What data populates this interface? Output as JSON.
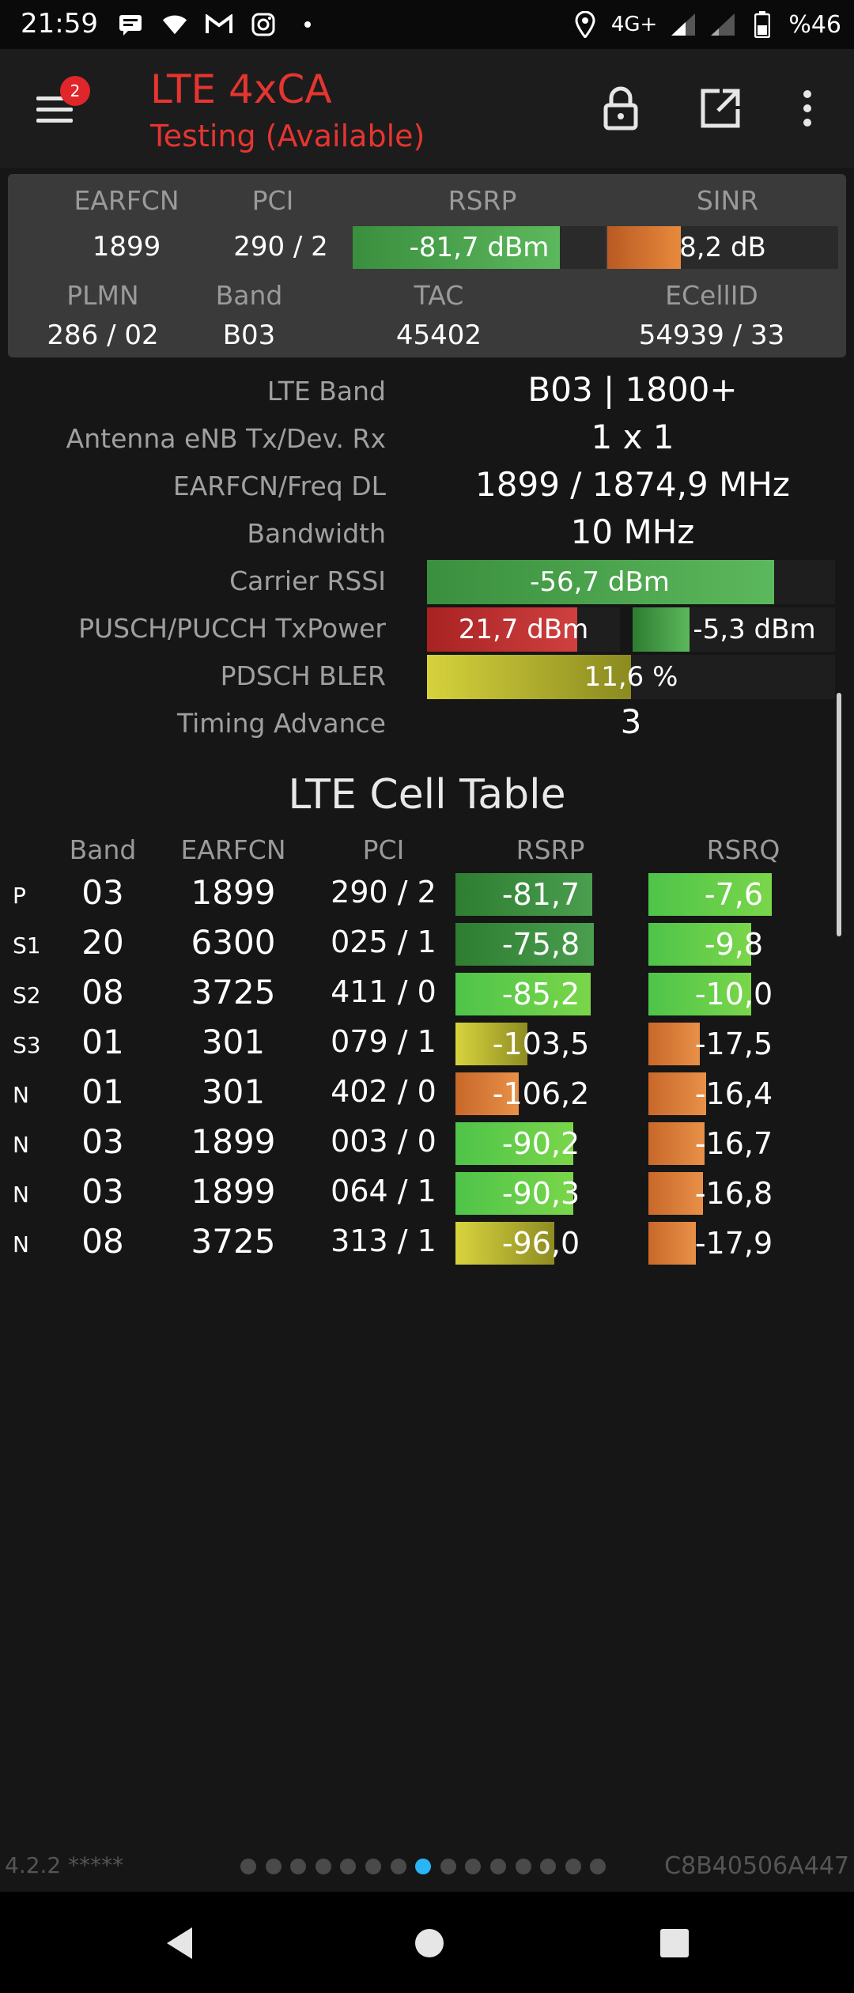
{
  "status_bar": {
    "time": "21:59",
    "left_icons": [
      "message-icon",
      "wifi-icon",
      "gmail-icon",
      "instagram-icon",
      "dot-icon"
    ],
    "network": "4G+",
    "battery": "%46"
  },
  "app_bar": {
    "menu_badge": "2",
    "title": "LTE 4xCA",
    "subtitle": "Testing (Available)",
    "actions": [
      "lock-icon",
      "open-external-icon",
      "more-vert-icon"
    ]
  },
  "summary": {
    "headers": {
      "earfcn": "EARFCN",
      "pci": "PCI",
      "rsrp": "RSRP",
      "sinr": "SINR",
      "plmn": "PLMN",
      "band": "Band",
      "tac": "TAC",
      "ecellid": "ECellID"
    },
    "earfcn": "1899",
    "pci": "290 / 2",
    "rsrp": "-81,7 dBm",
    "rsrp_level": 0.82,
    "sinr": "8,2 dB",
    "sinr_level": 0.32,
    "plmn": "286 / 02",
    "band": "B03",
    "tac": "45402",
    "ecellid": "54939 / 33"
  },
  "info": {
    "lte_band_label": "LTE Band",
    "lte_band_value": "B03 | 1800+",
    "antenna_label": "Antenna eNB Tx/Dev. Rx",
    "antenna_value": "1 x 1",
    "earfcn_freq_label": "EARFCN/Freq DL",
    "earfcn_freq_value": "1899 / 1874,9 MHz",
    "bandwidth_label": "Bandwidth",
    "bandwidth_value": "10 MHz",
    "carrier_rssi_label": "Carrier RSSI",
    "carrier_rssi_value": "-56,7 dBm",
    "carrier_rssi_level": 0.85,
    "txpower_label": "PUSCH/PUCCH TxPower",
    "pusch_value": "21,7 dBm",
    "pusch_level": 0.78,
    "pucch_value": "-5,3 dBm",
    "pucch_level": 0.28,
    "bler_label": "PDSCH BLER",
    "bler_value": "11,6 %",
    "bler_level": 0.5,
    "timing_advance_label": "Timing Advance",
    "timing_advance_value": "3"
  },
  "cell_table": {
    "title": "LTE Cell Table",
    "headers": {
      "band": "Band",
      "earfcn": "EARFCN",
      "pci": "PCI",
      "rsrp": "RSRP",
      "rsrq": "RSRQ"
    },
    "rows": [
      {
        "type": "P",
        "band": "03",
        "earfcn": "1899",
        "pci": "290 / 2",
        "rsrp": "-81,7",
        "rsrq": "-7,6",
        "rsrp_level": 0.8,
        "rsrq_level": 0.72,
        "rsrp_color": "dark-green",
        "rsrq_color": "green"
      },
      {
        "type": "S1",
        "band": "20",
        "earfcn": "6300",
        "pci": "025 / 1",
        "rsrp": "-75,8",
        "rsrq": "-9,8",
        "rsrp_level": 0.81,
        "rsrq_level": 0.6,
        "rsrp_color": "dark-green",
        "rsrq_color": "green"
      },
      {
        "type": "S2",
        "band": "08",
        "earfcn": "3725",
        "pci": "411 / 0",
        "rsrp": "-85,2",
        "rsrq": "-10,0",
        "rsrp_level": 0.79,
        "rsrq_level": 0.6,
        "rsrp_color": "green",
        "rsrq_color": "green"
      },
      {
        "type": "S3",
        "band": "01",
        "earfcn": "301",
        "pci": "079 / 1",
        "rsrp": "-103,5",
        "rsrq": "-17,5",
        "rsrp_level": 0.42,
        "rsrq_level": 0.3,
        "rsrp_color": "yellow",
        "rsrq_color": "orange"
      },
      {
        "type": "N",
        "band": "01",
        "earfcn": "301",
        "pci": "402 / 0",
        "rsrp": "-106,2",
        "rsrq": "-16,4",
        "rsrp_level": 0.37,
        "rsrq_level": 0.34,
        "rsrp_color": "orange",
        "rsrq_color": "orange"
      },
      {
        "type": "N",
        "band": "03",
        "earfcn": "1899",
        "pci": "003 / 0",
        "rsrp": "-90,2",
        "rsrq": "-16,7",
        "rsrp_level": 0.69,
        "rsrq_level": 0.33,
        "rsrp_color": "green",
        "rsrq_color": "orange"
      },
      {
        "type": "N",
        "band": "03",
        "earfcn": "1899",
        "pci": "064 / 1",
        "rsrp": "-90,3",
        "rsrq": "-16,8",
        "rsrp_level": 0.69,
        "rsrq_level": 0.32,
        "rsrp_color": "green",
        "rsrq_color": "orange"
      },
      {
        "type": "N",
        "band": "08",
        "earfcn": "3725",
        "pci": "313 / 1",
        "rsrp": "-96,0",
        "rsrq": "-17,9",
        "rsrp_level": 0.58,
        "rsrq_level": 0.28,
        "rsrp_color": "yellow",
        "rsrq_color": "orange"
      }
    ]
  },
  "footer": {
    "version": "4.2.2 *****",
    "device_id": "C8B40506A447",
    "page_count": 15,
    "active_page": 8
  },
  "colors": {
    "accent_red": "#e53531",
    "green": "#4caf50",
    "dark_green": "#2e7d32",
    "orange": "#e0742c",
    "yellow": "#d6d23c",
    "red_bar": "#c62828",
    "active_dot": "#29b6f6"
  }
}
